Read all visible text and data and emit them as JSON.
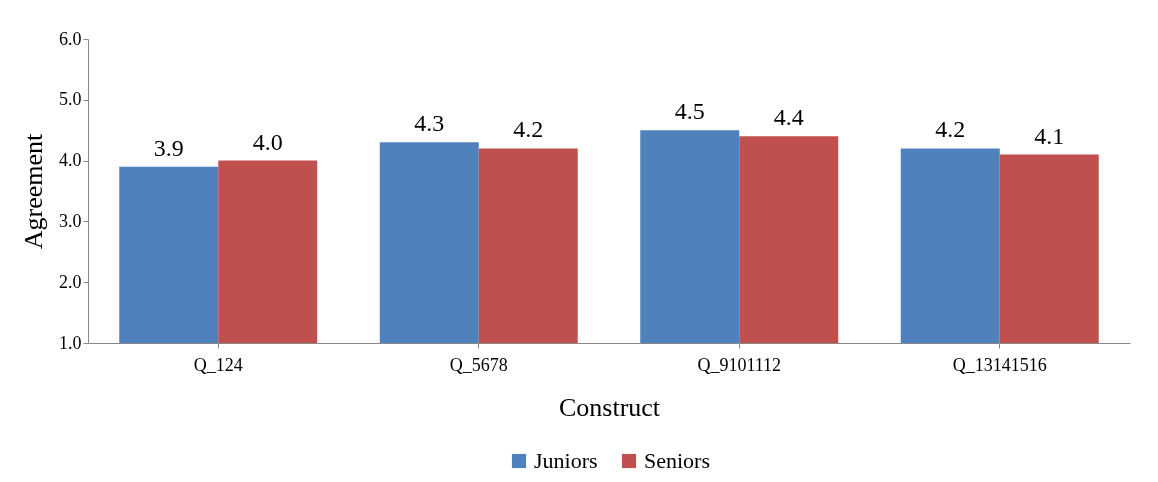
{
  "chart_data": {
    "type": "bar",
    "xlabel": "Construct",
    "ylabel": "Agreement",
    "categories": [
      "Q_124",
      "Q_5678",
      "Q_9101112",
      "Q_13141516"
    ],
    "series": [
      {
        "name": "Juniors",
        "color": "#4f81bd",
        "values": [
          3.9,
          4.3,
          4.5,
          4.2
        ],
        "value_labels": [
          "3.9",
          "4.3",
          "4.5",
          "4.2"
        ]
      },
      {
        "name": "Seniors",
        "color": "#c0504d",
        "values": [
          4.0,
          4.2,
          4.4,
          4.1
        ],
        "value_labels": [
          "4.0",
          "4.2",
          "4.4",
          "4.1"
        ]
      }
    ],
    "ylim": [
      1,
      6
    ],
    "yticks": [
      {
        "value": 1,
        "label": "1.0"
      },
      {
        "value": 2,
        "label": "2.0"
      },
      {
        "value": 3,
        "label": "3.0"
      },
      {
        "value": 4,
        "label": "4.0"
      },
      {
        "value": 5,
        "label": "5.0"
      },
      {
        "value": 6,
        "label": "6.0"
      }
    ],
    "grid": false,
    "legend": "bottom"
  }
}
